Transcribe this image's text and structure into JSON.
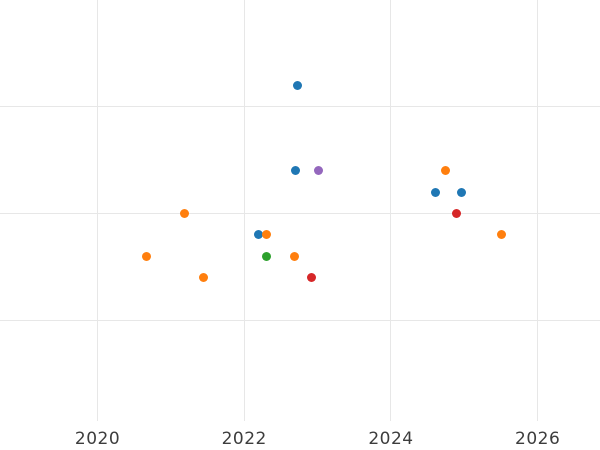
{
  "chart_data": {
    "type": "scatter",
    "title": "",
    "xlabel": "",
    "ylabel": "",
    "x_ticks": [
      2020,
      2022,
      2024,
      2026
    ],
    "x_tick_labels": [
      "2020",
      "2022",
      "2024",
      "2026"
    ],
    "xlim": [
      2018.67,
      2026.85
    ],
    "ylim": [
      0.48,
      20.0
    ],
    "y_gridlines": [
      5,
      10,
      15
    ],
    "grid": true,
    "legend_position": "none",
    "y_tick_labels_visible": false,
    "axis_text_color": "#3d3d3d",
    "gridline_color": "#e7e7e7",
    "marker_size_px": 9,
    "series": [
      {
        "name": "blue",
        "color": "#1f77b4",
        "points": [
          [
            2022.73,
            16
          ],
          [
            2022.7,
            12
          ],
          [
            2024.61,
            11
          ],
          [
            2024.96,
            11
          ],
          [
            2022.2,
            9
          ]
        ]
      },
      {
        "name": "orange",
        "color": "#ff7f0e",
        "points": [
          [
            2024.75,
            12
          ],
          [
            2021.18,
            10
          ],
          [
            2022.31,
            9
          ],
          [
            2025.51,
            9
          ],
          [
            2020.67,
            8
          ],
          [
            2022.69,
            8
          ],
          [
            2021.44,
            7
          ]
        ]
      },
      {
        "name": "green",
        "color": "#2ca02c",
        "points": [
          [
            2022.31,
            8
          ]
        ]
      },
      {
        "name": "red",
        "color": "#d62728",
        "points": [
          [
            2024.9,
            10
          ],
          [
            2022.92,
            7
          ]
        ]
      },
      {
        "name": "purple",
        "color": "#9467bd",
        "points": [
          [
            2023.01,
            12
          ]
        ]
      }
    ]
  }
}
